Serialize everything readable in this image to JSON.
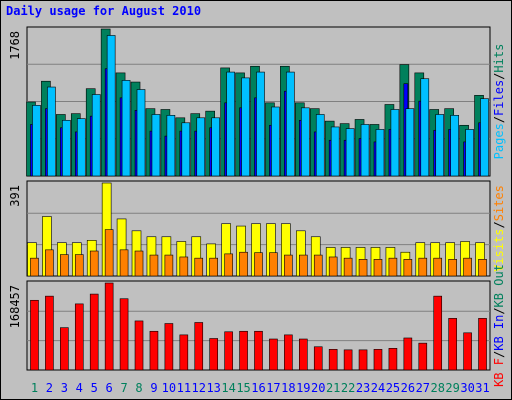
{
  "title": "Daily usage for August 2010",
  "colors": {
    "hits": "#00805c",
    "files": "#0000ff",
    "pages": "#00c0ff",
    "visits": "#ffff00",
    "sites": "#ff8000",
    "kbin": "#0000ff",
    "kbout": "#ff0000",
    "weekend_label": "#00805c",
    "weekday_label": "#0000ff"
  },
  "chart_data": [
    {
      "type": "bar",
      "name_labels": [
        "Pages",
        "Files",
        "Hits"
      ],
      "max_label": "1768",
      "ylim": [
        0,
        1768
      ],
      "categories": [
        "1",
        "2",
        "3",
        "4",
        "5",
        "6",
        "7",
        "8",
        "9",
        "10",
        "11",
        "12",
        "13",
        "14",
        "15",
        "16",
        "17",
        "18",
        "19",
        "20",
        "21",
        "22",
        "23",
        "24",
        "25",
        "26",
        "27",
        "28",
        "29",
        "30",
        "31"
      ],
      "weekend": [
        1,
        7,
        8,
        14,
        15,
        21,
        22,
        28,
        29
      ],
      "series": [
        {
          "name": "Hits",
          "values": [
            890,
            1140,
            740,
            750,
            1050,
            1768,
            1240,
            1130,
            810,
            800,
            700,
            750,
            780,
            1300,
            1240,
            1320,
            880,
            1320,
            880,
            810,
            660,
            630,
            680,
            620,
            860,
            1340,
            1240,
            800,
            810,
            610,
            970
          ]
        },
        {
          "name": "Files",
          "values": [
            620,
            810,
            580,
            530,
            720,
            1290,
            940,
            790,
            540,
            480,
            540,
            540,
            580,
            880,
            820,
            940,
            610,
            1020,
            670,
            530,
            430,
            430,
            450,
            410,
            560,
            1110,
            900,
            550,
            560,
            410,
            640
          ]
        },
        {
          "name": "Pages",
          "values": [
            850,
            1070,
            670,
            690,
            980,
            1690,
            1150,
            1040,
            740,
            730,
            640,
            700,
            700,
            1250,
            1180,
            1250,
            830,
            1250,
            820,
            740,
            590,
            570,
            620,
            560,
            800,
            810,
            1170,
            740,
            730,
            560,
            930
          ]
        }
      ]
    },
    {
      "type": "bar",
      "name_labels": [
        "Visits",
        "Sites"
      ],
      "max_label": "391",
      "ylim": [
        0,
        391
      ],
      "categories": [
        "1",
        "2",
        "3",
        "4",
        "5",
        "6",
        "7",
        "8",
        "9",
        "10",
        "11",
        "12",
        "13",
        "14",
        "15",
        "16",
        "17",
        "18",
        "19",
        "20",
        "21",
        "22",
        "23",
        "24",
        "25",
        "26",
        "27",
        "28",
        "29",
        "30",
        "31"
      ],
      "series": [
        {
          "name": "Visits",
          "values": [
            140,
            250,
            140,
            140,
            150,
            391,
            240,
            190,
            165,
            165,
            145,
            165,
            135,
            220,
            210,
            220,
            220,
            220,
            190,
            165,
            120,
            120,
            120,
            120,
            120,
            100,
            140,
            140,
            140,
            145,
            140
          ]
        },
        {
          "name": "Sites",
          "values": [
            75,
            110,
            90,
            90,
            105,
            195,
            110,
            105,
            88,
            88,
            80,
            75,
            75,
            93,
            100,
            98,
            98,
            88,
            88,
            88,
            80,
            75,
            70,
            70,
            75,
            70,
            75,
            75,
            70,
            75,
            70
          ]
        }
      ]
    },
    {
      "type": "bar",
      "name_labels": [
        "KB F",
        "KB In",
        "KB Out"
      ],
      "max_label": "168457",
      "ylim": [
        0,
        168457
      ],
      "categories": [
        "1",
        "2",
        "3",
        "4",
        "5",
        "6",
        "7",
        "8",
        "9",
        "10",
        "11",
        "12",
        "13",
        "14",
        "15",
        "16",
        "17",
        "18",
        "19",
        "20",
        "21",
        "22",
        "23",
        "24",
        "25",
        "26",
        "27",
        "28",
        "29",
        "30",
        "31"
      ],
      "series": [
        {
          "name": "KB F",
          "values": [
            135000,
            143000,
            82000,
            128000,
            147000,
            168457,
            138000,
            95000,
            75000,
            90000,
            68000,
            92000,
            61000,
            74000,
            75000,
            75000,
            60000,
            68000,
            60000,
            45000,
            40000,
            39000,
            39000,
            40000,
            42000,
            62000,
            52000,
            143000,
            100000,
            72000,
            100000
          ]
        }
      ]
    }
  ],
  "day_labels": [
    "1",
    "2",
    "3",
    "4",
    "5",
    "6",
    "7",
    "8",
    "9",
    "10",
    "11",
    "12",
    "13",
    "14",
    "15",
    "16",
    "17",
    "18",
    "19",
    "20",
    "21",
    "22",
    "23",
    "24",
    "25",
    "26",
    "27",
    "28",
    "29",
    "30",
    "31"
  ]
}
